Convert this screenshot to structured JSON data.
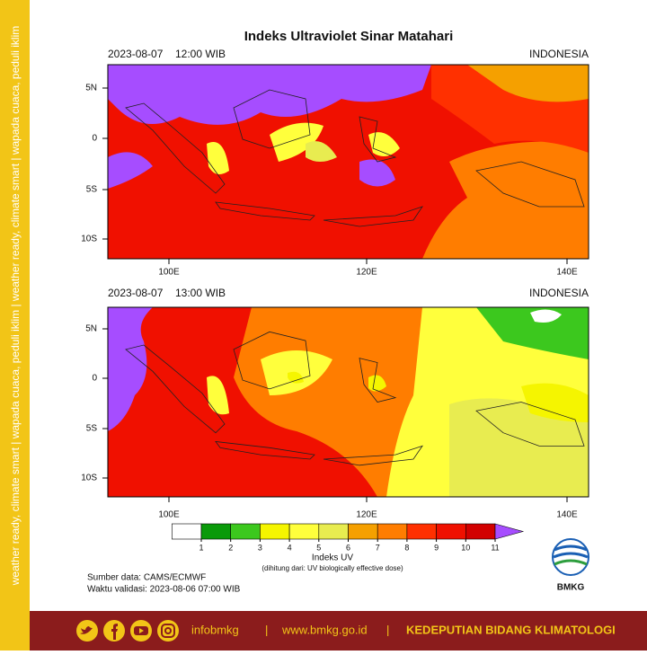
{
  "title": "Indeks Ultraviolet Sinar Matahari",
  "panels": [
    {
      "date": "2023-08-07",
      "time": "12:00 WIB",
      "region": "INDONESIA",
      "lat_labels": [
        "5N",
        "0",
        "5S",
        "10S"
      ],
      "lon_labels": [
        "100E",
        "120E",
        "140E"
      ]
    },
    {
      "date": "2023-08-07",
      "time": "13:00 WIB",
      "region": "INDONESIA",
      "lat_labels": [
        "5N",
        "0",
        "5S",
        "10S"
      ],
      "lon_labels": [
        "100E",
        "120E",
        "140E"
      ]
    }
  ],
  "colorbar": {
    "ticks": [
      1,
      2,
      3,
      4,
      5,
      6,
      7,
      8,
      9,
      10,
      11
    ],
    "colors": [
      "#ffffff",
      "#0a9a0a",
      "#3cc81e",
      "#f5f500",
      "#ffff3c",
      "#e8ec50",
      "#f5a000",
      "#ff7d00",
      "#ff3000",
      "#f01000",
      "#d20000",
      "#a64dff"
    ],
    "label": "Indeks UV",
    "note": "(dihitung dari: UV biologically effective dose)"
  },
  "source": "Sumber data: CAMS/ECMWF",
  "validity": "Waktu validasi: 2023-08-06 07:00 WIB",
  "side_text": "weather ready, climate smart  |  wapada cuaca, peduli iklim  |  weather ready, climate smart  |  wapada cuaca, peduli iklim",
  "logo": "BMKG",
  "footer": {
    "handle": "infobmkg",
    "separator": "|",
    "url": "www.bmkg.go.id",
    "department": "KEDEPUTIAN BIDANG KLIMATOLOGI"
  }
}
